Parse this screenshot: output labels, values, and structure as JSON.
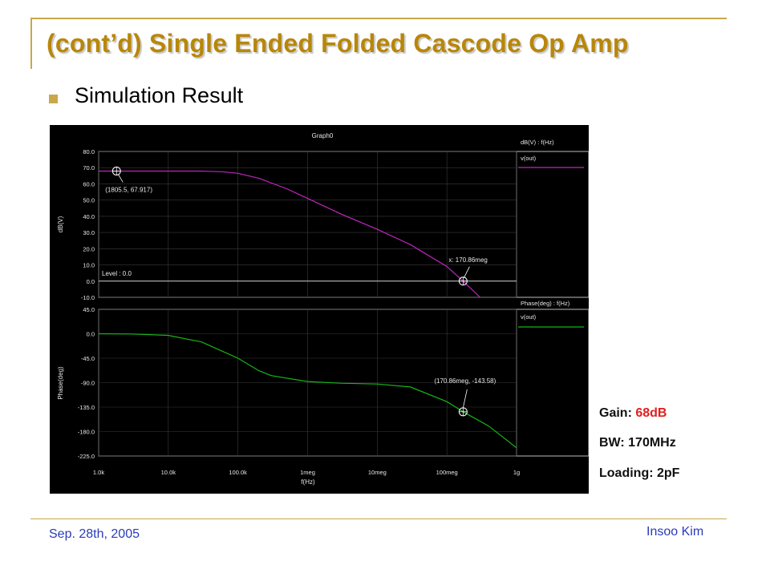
{
  "slide": {
    "title": "(cont’d) Single Ended Folded Cascode Op Amp",
    "bullet": "Simulation Result"
  },
  "graph": {
    "title": "Graph0",
    "top_panel": {
      "ylabel": "dB(V)",
      "yticks": [
        "80.0",
        "70.0",
        "60.0",
        "50.0",
        "40.0",
        "30.0",
        "20.0",
        "10.0",
        "0.0",
        "-10.0"
      ],
      "legend_header": "dB(V) : f(Hz)",
      "legend_entry": "v(out)",
      "level_label": "Level : 0.0",
      "annotation_1": "(1805.5, 67.917)",
      "annotation_2": "x: 170.86meg"
    },
    "bottom_panel": {
      "ylabel": "Phase(deg)",
      "yticks": [
        "45.0",
        "0.0",
        "-45.0",
        "-90.0",
        "-135.0",
        "-180.0",
        "-225.0"
      ],
      "legend_header": "Phase(deg) : f(Hz)",
      "legend_entry": "v(out)",
      "annotation": "(170.86meg, -143.58)"
    },
    "xticks": [
      "1.0k",
      "10.0k",
      "100.0k",
      "1meg",
      "10meg",
      "100meg",
      "1g"
    ],
    "xlabel": "f(Hz)"
  },
  "chart_data": [
    {
      "type": "line",
      "title": "Graph0",
      "xscale": "log",
      "xlabel": "f(Hz)",
      "ylabel": "dB(V)",
      "ylim": [
        -10,
        80
      ],
      "grid": true,
      "legend_placement": "right",
      "series": [
        {
          "name": "v(out)",
          "color": "#c026c0",
          "x": [
            1000,
            3000,
            10000,
            30000,
            60000,
            100000,
            200000,
            500000,
            1000000,
            3000000,
            10000000,
            30000000,
            100000000,
            170860000,
            300000000
          ],
          "y": [
            67.9,
            67.9,
            67.9,
            67.9,
            67.5,
            66.5,
            63.5,
            57.0,
            51.0,
            41.5,
            32.0,
            22.5,
            9.0,
            0.0,
            -10.0
          ]
        }
      ],
      "markers": [
        {
          "x": 1805.5,
          "y": 67.917
        },
        {
          "x": 170860000,
          "y": 0.0
        }
      ]
    },
    {
      "type": "line",
      "xscale": "log",
      "xlabel": "f(Hz)",
      "ylabel": "Phase(deg)",
      "ylim": [
        -225,
        45
      ],
      "grid": true,
      "legend_placement": "right",
      "series": [
        {
          "name": "v(out)",
          "color": "#17b517",
          "x": [
            1000,
            3000,
            10000,
            30000,
            100000,
            200000,
            300000,
            1000000,
            3000000,
            10000000,
            30000000,
            100000000,
            170860000,
            400000000,
            1000000000
          ],
          "y": [
            0,
            -0.5,
            -3,
            -15,
            -45,
            -68,
            -77,
            -88,
            -91,
            -92.5,
            -98,
            -125,
            -143.58,
            -170,
            -210
          ]
        }
      ],
      "markers": [
        {
          "x": 170860000,
          "y": -143.58
        }
      ]
    }
  ],
  "info": {
    "gain_label": "Gain:",
    "gain_value": "68dB",
    "bw": "BW: 170MHz",
    "loading": "Loading: 2pF",
    "accent_color": "#e0201e"
  },
  "footer": {
    "date": "Sep. 28th, 2005",
    "author": "Insoo Kim"
  },
  "colors": {
    "title": "#b8870a",
    "rule": "#c9a84a",
    "footer_text": "#2a3cb8",
    "plot_background": "#000000",
    "plot_frame": "#c0c0c0",
    "magnitude_trace": "#c026c0",
    "phase_trace": "#17b517"
  }
}
